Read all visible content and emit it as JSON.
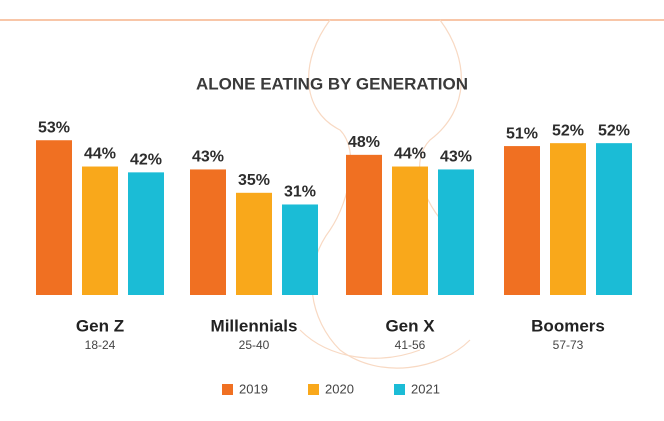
{
  "chart_data": {
    "type": "bar",
    "title": "ALONE EATING BY GENERATION",
    "categories": [
      "Gen Z",
      "Millennials",
      "Gen X",
      "Boomers"
    ],
    "category_subtitles": [
      "18-24",
      "25-40",
      "41-56",
      "57-73"
    ],
    "series": [
      {
        "name": "2019",
        "color": "#f07022",
        "values": [
          53,
          43,
          48,
          51
        ],
        "value_labels": [
          "53%",
          "43%",
          "48%",
          "51%"
        ]
      },
      {
        "name": "2020",
        "color": "#f9a81b",
        "values": [
          44,
          35,
          44,
          52
        ],
        "value_labels": [
          "44%",
          "35%",
          "44%",
          "52%"
        ]
      },
      {
        "name": "2021",
        "color": "#1bbcd6",
        "values": [
          42,
          31,
          43,
          52
        ],
        "value_labels": [
          "42%",
          "31%",
          "43%",
          "52%"
        ]
      }
    ]
  }
}
